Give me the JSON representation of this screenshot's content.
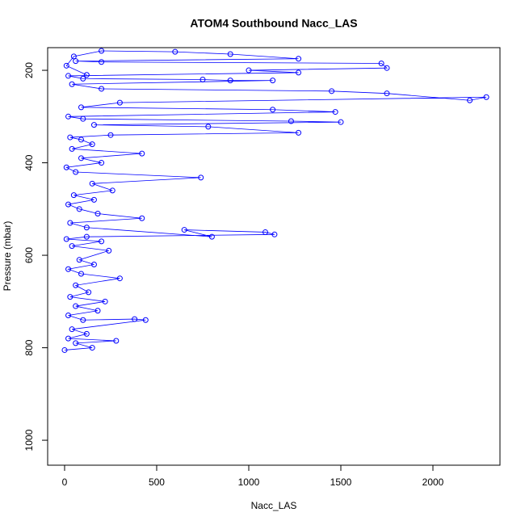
{
  "chart_data": {
    "type": "line",
    "markers": "open-circle",
    "title": "ATOM4 Southbound Nacc_LAS",
    "x_label": "Nacc_LAS",
    "y_label": "Pressure (mbar)",
    "color": "#0000ff",
    "x": [
      0,
      150,
      60,
      280,
      20,
      120,
      40,
      440,
      380,
      100,
      20,
      180,
      60,
      220,
      30,
      130,
      60,
      300,
      90,
      20,
      160,
      80,
      240,
      40,
      200,
      10,
      120,
      1140,
      1090,
      650,
      800,
      120,
      30,
      420,
      180,
      80,
      20,
      160,
      50,
      260,
      150,
      740,
      60,
      10,
      200,
      90,
      420,
      40,
      150,
      90,
      30,
      250,
      1270,
      780,
      160,
      1500,
      1230,
      100,
      20,
      1470,
      1130,
      90,
      300,
      2290,
      2200,
      1750,
      1450,
      200,
      40,
      1130,
      900,
      750,
      100,
      20,
      1270,
      1000,
      1750,
      1720,
      200,
      60,
      1270,
      900,
      600,
      200,
      50,
      10,
      120
    ],
    "values": [
      805,
      800,
      790,
      785,
      780,
      770,
      760,
      740,
      738,
      740,
      730,
      720,
      710,
      700,
      690,
      680,
      665,
      650,
      640,
      630,
      620,
      610,
      590,
      580,
      570,
      565,
      560,
      555,
      550,
      545,
      560,
      540,
      530,
      520,
      510,
      500,
      490,
      480,
      470,
      460,
      445,
      432,
      420,
      410,
      400,
      390,
      380,
      370,
      360,
      350,
      345,
      340,
      335,
      322,
      318,
      312,
      310,
      305,
      300,
      290,
      285,
      280,
      270,
      258,
      265,
      250,
      245,
      240,
      230,
      222,
      222,
      220,
      218,
      212,
      205,
      200,
      195,
      185,
      182,
      180,
      175,
      165,
      160,
      158,
      170,
      190,
      210
    ],
    "xlim": [
      -92,
      2364
    ],
    "xticks": [
      0,
      500,
      1000,
      1500,
      2000
    ],
    "ylim": [
      1054,
      151
    ],
    "yticks": [
      200,
      400,
      600,
      800,
      1000
    ]
  }
}
